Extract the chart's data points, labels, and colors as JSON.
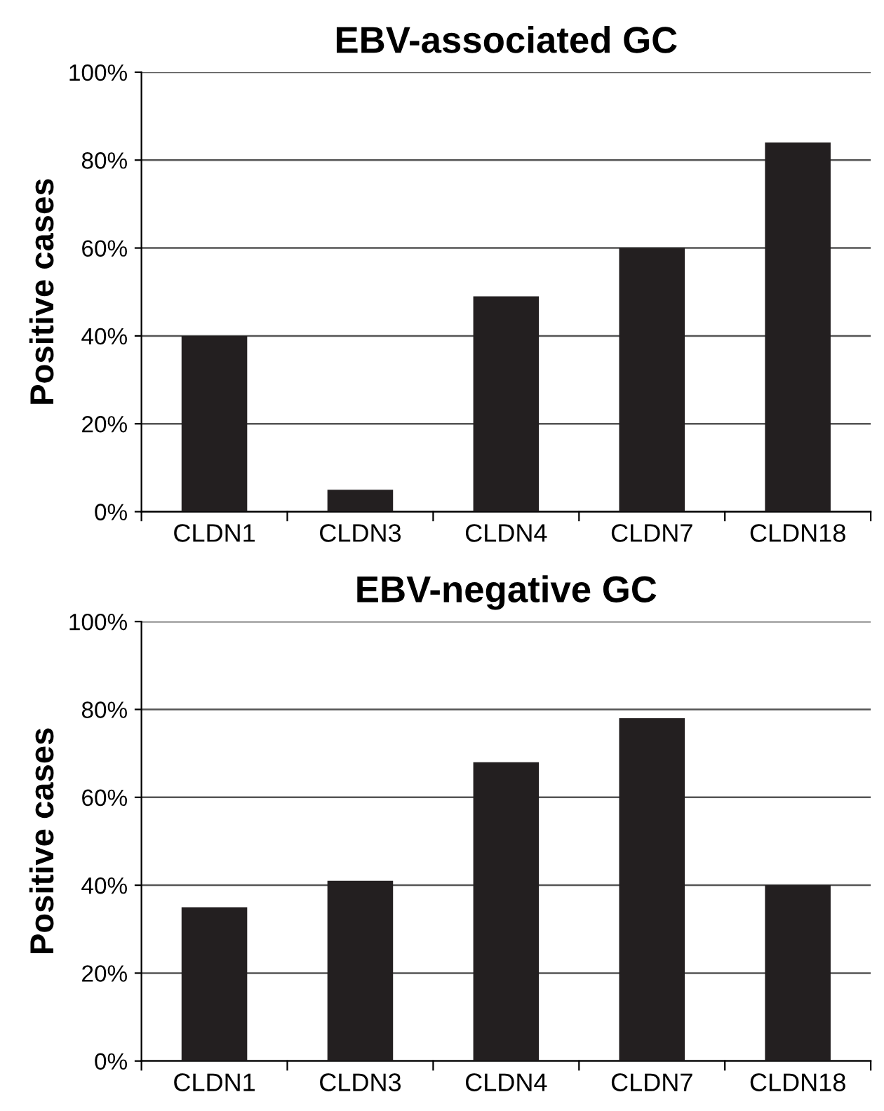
{
  "chart_data": [
    {
      "type": "bar",
      "title": "EBV-associated GC",
      "ylabel": "Positive cases",
      "categories": [
        "CLDN1",
        "CLDN3",
        "CLDN4",
        "CLDN7",
        "CLDN18"
      ],
      "values": [
        40,
        5,
        49,
        60,
        84
      ],
      "color": "#231f20",
      "ylim": [
        0,
        100
      ],
      "yticks": [
        {
          "value": 0,
          "label": "0%"
        },
        {
          "value": 20,
          "label": "20%"
        },
        {
          "value": 40,
          "label": "40%"
        },
        {
          "value": 60,
          "label": "60%"
        },
        {
          "value": 80,
          "label": "80%"
        },
        {
          "value": 100,
          "label": "100%"
        }
      ],
      "grid": "y"
    },
    {
      "type": "bar",
      "title": "EBV-negative GC",
      "ylabel": "Positive cases",
      "categories": [
        "CLDN1",
        "CLDN3",
        "CLDN4",
        "CLDN7",
        "CLDN18"
      ],
      "values": [
        35,
        41,
        68,
        78,
        40
      ],
      "color": "#231f20",
      "ylim": [
        0,
        100
      ],
      "yticks": [
        {
          "value": 0,
          "label": "0%"
        },
        {
          "value": 20,
          "label": "20%"
        },
        {
          "value": 40,
          "label": "40%"
        },
        {
          "value": 60,
          "label": "60%"
        },
        {
          "value": 80,
          "label": "80%"
        },
        {
          "value": 100,
          "label": "100%"
        }
      ],
      "grid": "y"
    }
  ]
}
